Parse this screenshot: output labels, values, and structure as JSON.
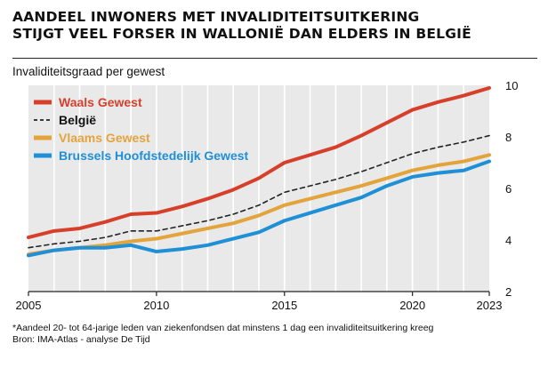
{
  "title_lines": [
    "AANDEEL INWONERS MET INVALIDITEITSUITKERING",
    "STIJGT VEEL FORSER IN WALLONIË DAN ELDERS IN BELGIË"
  ],
  "subtitle": "Invaliditeitsgraad per gewest",
  "footnote_lines": [
    "*Aandeel 20- tot 64-jarige leden van ziekenfondsen dat minstens 1 dag een invaliditeitsuitkering kreeg",
    "Bron: IMA-Atlas - analyse De Tijd"
  ],
  "chart_data": {
    "type": "line",
    "x": [
      2005,
      2006,
      2007,
      2008,
      2009,
      2010,
      2011,
      2012,
      2013,
      2014,
      2015,
      2016,
      2017,
      2018,
      2019,
      2020,
      2021,
      2022,
      2023
    ],
    "x_ticks": [
      2005,
      2010,
      2015,
      2020,
      2023
    ],
    "x_tick_labels": [
      "2005",
      "2010",
      "2015",
      "2020",
      "2023"
    ],
    "xlim": [
      2005,
      2023
    ],
    "y_ticks": [
      2,
      4,
      6,
      8,
      10
    ],
    "y_tick_labels": [
      "2",
      "4",
      "6",
      "8",
      "10"
    ],
    "ylim": [
      2,
      10
    ],
    "grid": "vertical",
    "legend": "top-left",
    "series": [
      {
        "name": "Waals Gewest",
        "color": "#d6402b",
        "style": "solid",
        "values": [
          4.1,
          4.35,
          4.45,
          4.7,
          5.0,
          5.05,
          5.3,
          5.6,
          5.95,
          6.4,
          7.0,
          7.3,
          7.6,
          8.05,
          8.55,
          9.05,
          9.35,
          9.6,
          9.9
        ]
      },
      {
        "name": "België",
        "color": "#222222",
        "style": "dashed",
        "values": [
          3.7,
          3.85,
          3.95,
          4.1,
          4.35,
          4.35,
          4.55,
          4.75,
          5.0,
          5.35,
          5.85,
          6.1,
          6.35,
          6.65,
          7.0,
          7.35,
          7.6,
          7.8,
          8.05
        ]
      },
      {
        "name": "Vlaams Gewest",
        "color": "#e3a43c",
        "style": "solid",
        "values": [
          3.45,
          3.6,
          3.7,
          3.8,
          3.95,
          4.05,
          4.25,
          4.45,
          4.65,
          4.95,
          5.35,
          5.6,
          5.85,
          6.1,
          6.4,
          6.7,
          6.9,
          7.05,
          7.3
        ]
      },
      {
        "name": "Brussels Hoofdstedelijk Gewest",
        "color": "#1f8fd6",
        "style": "solid",
        "values": [
          3.4,
          3.6,
          3.7,
          3.7,
          3.8,
          3.55,
          3.65,
          3.8,
          4.05,
          4.3,
          4.75,
          5.05,
          5.35,
          5.65,
          6.1,
          6.45,
          6.6,
          6.7,
          7.05
        ]
      }
    ]
  }
}
